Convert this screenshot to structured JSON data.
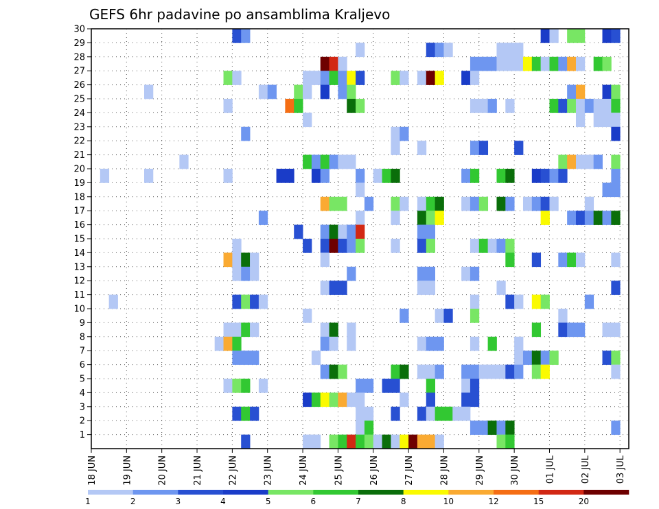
{
  "chart_data": {
    "type": "heatmap",
    "title": "GEFS 6hr padavine po ansamblima Kraljevo",
    "xlabel": "",
    "ylabel": "",
    "x_tick_labels": [
      "18 JUN",
      "19 JUN",
      "20 JUN",
      "21 JUN",
      "22 JUN",
      "23 JUN",
      "24 JUN",
      "25 JUN",
      "26 JUN",
      "27 JUN",
      "28 JUN",
      "29 JUN",
      "30 JUN",
      "01 JUL",
      "02 JUL",
      "03 JUL"
    ],
    "y_tick_labels": [
      "1",
      "2",
      "3",
      "4",
      "5",
      "6",
      "7",
      "8",
      "9",
      "10",
      "11",
      "12",
      "13",
      "14",
      "15",
      "16",
      "17",
      "18",
      "19",
      "20",
      "21",
      "22",
      "23",
      "24",
      "25",
      "26",
      "27",
      "28",
      "29",
      "30"
    ],
    "time_steps_per_day": 4,
    "xlim": [
      0,
      61
    ],
    "ylim": [
      0,
      30
    ],
    "grid": "dotted",
    "legend": {
      "placement": "bottom",
      "labels": [
        "1",
        "2",
        "3",
        "4",
        "5",
        "6",
        "7",
        "8",
        "10",
        "12",
        "15",
        "20"
      ],
      "colors": [
        "#b4c8f5",
        "#6e96f0",
        "#2850d2",
        "#1a3cc8",
        "#78e664",
        "#32c832",
        "#0a6e0a",
        "#fafa00",
        "#faaa32",
        "#f56e14",
        "#d22814",
        "#6e0000"
      ]
    },
    "cells_note": "each entry: [time_step_index, ensemble_member, color_class]",
    "cells": [
      [
        16,
        30,
        2
      ],
      [
        17,
        30,
        1
      ],
      [
        51,
        30,
        3
      ],
      [
        52,
        30,
        0
      ],
      [
        54,
        30,
        4
      ],
      [
        55,
        30,
        4
      ],
      [
        58,
        30,
        3
      ],
      [
        59,
        30,
        2
      ],
      [
        30,
        29,
        0
      ],
      [
        38,
        29,
        2
      ],
      [
        39,
        29,
        1
      ],
      [
        40,
        29,
        0
      ],
      [
        46,
        29,
        0
      ],
      [
        47,
        29,
        0
      ],
      [
        48,
        29,
        0
      ],
      [
        26,
        28,
        11
      ],
      [
        27,
        28,
        10
      ],
      [
        28,
        28,
        0
      ],
      [
        43,
        28,
        1
      ],
      [
        44,
        28,
        1
      ],
      [
        45,
        28,
        1
      ],
      [
        46,
        28,
        0
      ],
      [
        47,
        28,
        0
      ],
      [
        48,
        28,
        0
      ],
      [
        49,
        28,
        7
      ],
      [
        50,
        28,
        5
      ],
      [
        51,
        28,
        0
      ],
      [
        52,
        28,
        5
      ],
      [
        53,
        28,
        1
      ],
      [
        54,
        28,
        8
      ],
      [
        55,
        28,
        0
      ],
      [
        57,
        28,
        5
      ],
      [
        58,
        28,
        4
      ],
      [
        15,
        27,
        4
      ],
      [
        16,
        27,
        0
      ],
      [
        24,
        27,
        0
      ],
      [
        25,
        27,
        0
      ],
      [
        26,
        27,
        1
      ],
      [
        27,
        27,
        5
      ],
      [
        28,
        27,
        1
      ],
      [
        29,
        27,
        7
      ],
      [
        30,
        27,
        2
      ],
      [
        34,
        27,
        4
      ],
      [
        35,
        27,
        0
      ],
      [
        37,
        27,
        0
      ],
      [
        38,
        27,
        11
      ],
      [
        39,
        27,
        7
      ],
      [
        42,
        27,
        3
      ],
      [
        43,
        27,
        0
      ],
      [
        6,
        26,
        0
      ],
      [
        19,
        26,
        0
      ],
      [
        20,
        26,
        1
      ],
      [
        23,
        26,
        4
      ],
      [
        24,
        26,
        0
      ],
      [
        26,
        26,
        3
      ],
      [
        28,
        26,
        1
      ],
      [
        29,
        26,
        4
      ],
      [
        54,
        26,
        1
      ],
      [
        55,
        26,
        8
      ],
      [
        58,
        26,
        3
      ],
      [
        59,
        26,
        4
      ],
      [
        15,
        25,
        0
      ],
      [
        22,
        25,
        9
      ],
      [
        23,
        25,
        5
      ],
      [
        29,
        25,
        6
      ],
      [
        30,
        25,
        4
      ],
      [
        43,
        25,
        0
      ],
      [
        44,
        25,
        0
      ],
      [
        45,
        25,
        1
      ],
      [
        47,
        25,
        0
      ],
      [
        52,
        25,
        5
      ],
      [
        53,
        25,
        2
      ],
      [
        54,
        25,
        4
      ],
      [
        55,
        25,
        0
      ],
      [
        56,
        25,
        1
      ],
      [
        57,
        25,
        0
      ],
      [
        58,
        25,
        0
      ],
      [
        59,
        25,
        5
      ],
      [
        24,
        24,
        0
      ],
      [
        55,
        24,
        0
      ],
      [
        57,
        24,
        0
      ],
      [
        58,
        24,
        0
      ],
      [
        59,
        24,
        0
      ],
      [
        17,
        23,
        1
      ],
      [
        34,
        23,
        0
      ],
      [
        35,
        23,
        1
      ],
      [
        59,
        23,
        3
      ],
      [
        34,
        22,
        0
      ],
      [
        37,
        22,
        0
      ],
      [
        43,
        22,
        1
      ],
      [
        44,
        22,
        2
      ],
      [
        48,
        22,
        2
      ],
      [
        10,
        21,
        0
      ],
      [
        24,
        21,
        5
      ],
      [
        25,
        21,
        1
      ],
      [
        26,
        21,
        5
      ],
      [
        27,
        21,
        1
      ],
      [
        28,
        21,
        0
      ],
      [
        29,
        21,
        0
      ],
      [
        53,
        21,
        4
      ],
      [
        54,
        21,
        8
      ],
      [
        55,
        21,
        0
      ],
      [
        56,
        21,
        0
      ],
      [
        57,
        21,
        1
      ],
      [
        59,
        21,
        4
      ],
      [
        1,
        20,
        0
      ],
      [
        6,
        20,
        0
      ],
      [
        15,
        20,
        0
      ],
      [
        21,
        20,
        3
      ],
      [
        22,
        20,
        3
      ],
      [
        25,
        20,
        3
      ],
      [
        26,
        20,
        1
      ],
      [
        30,
        20,
        1
      ],
      [
        32,
        20,
        0
      ],
      [
        33,
        20,
        5
      ],
      [
        34,
        20,
        6
      ],
      [
        42,
        20,
        1
      ],
      [
        43,
        20,
        5
      ],
      [
        46,
        20,
        5
      ],
      [
        47,
        20,
        6
      ],
      [
        50,
        20,
        3
      ],
      [
        51,
        20,
        2
      ],
      [
        52,
        20,
        1
      ],
      [
        53,
        20,
        2
      ],
      [
        59,
        20,
        1
      ],
      [
        30,
        19,
        0
      ],
      [
        58,
        19,
        1
      ],
      [
        59,
        19,
        1
      ],
      [
        26,
        18,
        8
      ],
      [
        27,
        18,
        4
      ],
      [
        28,
        18,
        4
      ],
      [
        31,
        18,
        1
      ],
      [
        34,
        18,
        4
      ],
      [
        35,
        18,
        0
      ],
      [
        37,
        18,
        0
      ],
      [
        38,
        18,
        5
      ],
      [
        39,
        18,
        6
      ],
      [
        42,
        18,
        0
      ],
      [
        43,
        18,
        1
      ],
      [
        44,
        18,
        4
      ],
      [
        46,
        18,
        6
      ],
      [
        47,
        18,
        1
      ],
      [
        49,
        18,
        0
      ],
      [
        50,
        18,
        1
      ],
      [
        51,
        18,
        2
      ],
      [
        52,
        18,
        0
      ],
      [
        56,
        18,
        0
      ],
      [
        19,
        17,
        1
      ],
      [
        30,
        17,
        0
      ],
      [
        34,
        17,
        0
      ],
      [
        37,
        17,
        6
      ],
      [
        38,
        17,
        4
      ],
      [
        39,
        17,
        7
      ],
      [
        51,
        17,
        7
      ],
      [
        54,
        17,
        1
      ],
      [
        55,
        17,
        2
      ],
      [
        56,
        17,
        1
      ],
      [
        57,
        17,
        6
      ],
      [
        58,
        17,
        1
      ],
      [
        59,
        17,
        6
      ],
      [
        23,
        16,
        2
      ],
      [
        26,
        16,
        1
      ],
      [
        27,
        16,
        6
      ],
      [
        28,
        16,
        0
      ],
      [
        29,
        16,
        1
      ],
      [
        30,
        16,
        10
      ],
      [
        37,
        16,
        1
      ],
      [
        38,
        16,
        1
      ],
      [
        16,
        15,
        0
      ],
      [
        24,
        15,
        2
      ],
      [
        26,
        15,
        2
      ],
      [
        27,
        15,
        11
      ],
      [
        28,
        15,
        2
      ],
      [
        29,
        15,
        1
      ],
      [
        30,
        15,
        4
      ],
      [
        34,
        15,
        0
      ],
      [
        37,
        15,
        2
      ],
      [
        38,
        15,
        4
      ],
      [
        43,
        15,
        0
      ],
      [
        44,
        15,
        5
      ],
      [
        45,
        15,
        0
      ],
      [
        46,
        15,
        1
      ],
      [
        47,
        15,
        4
      ],
      [
        15,
        14,
        8
      ],
      [
        16,
        14,
        0
      ],
      [
        17,
        14,
        6
      ],
      [
        18,
        14,
        0
      ],
      [
        26,
        14,
        0
      ],
      [
        47,
        14,
        5
      ],
      [
        50,
        14,
        2
      ],
      [
        53,
        14,
        1
      ],
      [
        54,
        14,
        5
      ],
      [
        55,
        14,
        0
      ],
      [
        59,
        14,
        0
      ],
      [
        16,
        13,
        0
      ],
      [
        17,
        13,
        1
      ],
      [
        18,
        13,
        0
      ],
      [
        29,
        13,
        1
      ],
      [
        37,
        13,
        1
      ],
      [
        38,
        13,
        1
      ],
      [
        42,
        13,
        0
      ],
      [
        43,
        13,
        1
      ],
      [
        26,
        12,
        0
      ],
      [
        27,
        12,
        2
      ],
      [
        28,
        12,
        2
      ],
      [
        37,
        12,
        0
      ],
      [
        38,
        12,
        0
      ],
      [
        46,
        12,
        0
      ],
      [
        59,
        12,
        2
      ],
      [
        2,
        11,
        0
      ],
      [
        16,
        11,
        2
      ],
      [
        17,
        11,
        4
      ],
      [
        18,
        11,
        2
      ],
      [
        19,
        11,
        0
      ],
      [
        43,
        11,
        0
      ],
      [
        47,
        11,
        2
      ],
      [
        48,
        11,
        0
      ],
      [
        50,
        11,
        7
      ],
      [
        51,
        11,
        4
      ],
      [
        56,
        11,
        1
      ],
      [
        24,
        10,
        0
      ],
      [
        35,
        10,
        1
      ],
      [
        39,
        10,
        0
      ],
      [
        40,
        10,
        2
      ],
      [
        43,
        10,
        4
      ],
      [
        53,
        10,
        0
      ],
      [
        15,
        9,
        0
      ],
      [
        16,
        9,
        0
      ],
      [
        17,
        9,
        5
      ],
      [
        18,
        9,
        0
      ],
      [
        26,
        9,
        0
      ],
      [
        27,
        9,
        6
      ],
      [
        29,
        9,
        0
      ],
      [
        50,
        9,
        5
      ],
      [
        53,
        9,
        2
      ],
      [
        54,
        9,
        1
      ],
      [
        55,
        9,
        1
      ],
      [
        58,
        9,
        0
      ],
      [
        59,
        9,
        0
      ],
      [
        14,
        8,
        0
      ],
      [
        15,
        8,
        8
      ],
      [
        16,
        8,
        5
      ],
      [
        26,
        8,
        1
      ],
      [
        27,
        8,
        0
      ],
      [
        29,
        8,
        0
      ],
      [
        37,
        8,
        0
      ],
      [
        38,
        8,
        1
      ],
      [
        39,
        8,
        1
      ],
      [
        43,
        8,
        0
      ],
      [
        45,
        8,
        5
      ],
      [
        48,
        8,
        0
      ],
      [
        16,
        7,
        1
      ],
      [
        17,
        7,
        1
      ],
      [
        18,
        7,
        1
      ],
      [
        25,
        7,
        0
      ],
      [
        48,
        7,
        0
      ],
      [
        49,
        7,
        1
      ],
      [
        50,
        7,
        6
      ],
      [
        51,
        7,
        1
      ],
      [
        52,
        7,
        4
      ],
      [
        58,
        7,
        2
      ],
      [
        59,
        7,
        4
      ],
      [
        26,
        6,
        1
      ],
      [
        27,
        6,
        6
      ],
      [
        28,
        6,
        4
      ],
      [
        34,
        6,
        5
      ],
      [
        35,
        6,
        6
      ],
      [
        37,
        6,
        0
      ],
      [
        38,
        6,
        0
      ],
      [
        39,
        6,
        1
      ],
      [
        42,
        6,
        1
      ],
      [
        43,
        6,
        1
      ],
      [
        44,
        6,
        0
      ],
      [
        45,
        6,
        0
      ],
      [
        46,
        6,
        0
      ],
      [
        47,
        6,
        2
      ],
      [
        48,
        6,
        1
      ],
      [
        50,
        6,
        4
      ],
      [
        51,
        6,
        7
      ],
      [
        59,
        6,
        0
      ],
      [
        15,
        5,
        0
      ],
      [
        16,
        5,
        4
      ],
      [
        17,
        5,
        5
      ],
      [
        19,
        5,
        0
      ],
      [
        30,
        5,
        1
      ],
      [
        31,
        5,
        1
      ],
      [
        33,
        5,
        2
      ],
      [
        34,
        5,
        2
      ],
      [
        38,
        5,
        5
      ],
      [
        42,
        5,
        0
      ],
      [
        43,
        5,
        2
      ],
      [
        24,
        4,
        3
      ],
      [
        25,
        4,
        5
      ],
      [
        26,
        4,
        7
      ],
      [
        27,
        4,
        4
      ],
      [
        28,
        4,
        8
      ],
      [
        29,
        4,
        0
      ],
      [
        30,
        4,
        0
      ],
      [
        35,
        4,
        0
      ],
      [
        38,
        4,
        2
      ],
      [
        42,
        4,
        2
      ],
      [
        43,
        4,
        2
      ],
      [
        16,
        3,
        2
      ],
      [
        17,
        3,
        5
      ],
      [
        18,
        3,
        2
      ],
      [
        30,
        3,
        0
      ],
      [
        31,
        3,
        0
      ],
      [
        34,
        3,
        2
      ],
      [
        37,
        3,
        2
      ],
      [
        38,
        3,
        0
      ],
      [
        39,
        3,
        5
      ],
      [
        40,
        3,
        5
      ],
      [
        41,
        3,
        0
      ],
      [
        42,
        3,
        0
      ],
      [
        30,
        2,
        0
      ],
      [
        31,
        2,
        5
      ],
      [
        43,
        2,
        1
      ],
      [
        44,
        2,
        1
      ],
      [
        45,
        2,
        6
      ],
      [
        46,
        2,
        1
      ],
      [
        47,
        2,
        6
      ],
      [
        59,
        2,
        1
      ],
      [
        17,
        1,
        2
      ],
      [
        24,
        1,
        0
      ],
      [
        25,
        1,
        0
      ],
      [
        27,
        1,
        4
      ],
      [
        28,
        1,
        5
      ],
      [
        29,
        1,
        10
      ],
      [
        30,
        1,
        5
      ],
      [
        31,
        1,
        4
      ],
      [
        32,
        1,
        0
      ],
      [
        33,
        1,
        6
      ],
      [
        34,
        1,
        0
      ],
      [
        35,
        1,
        7
      ],
      [
        36,
        1,
        11
      ],
      [
        37,
        1,
        8
      ],
      [
        38,
        1,
        8
      ],
      [
        39,
        1,
        0
      ],
      [
        46,
        1,
        4
      ],
      [
        47,
        1,
        5
      ]
    ]
  }
}
